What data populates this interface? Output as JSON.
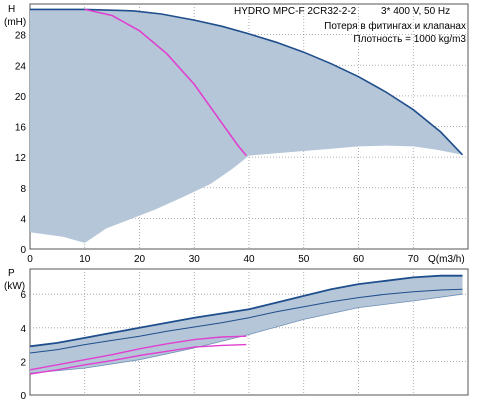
{
  "chart_data": [
    {
      "type": "area",
      "title": "HYDRO MPC-F 2CR32-2-2",
      "subtitle": "3* 400 V, 50 Hz",
      "annotations": [
        "Потеря в фитингах и клапанах",
        "Плотность = 1000 kg/m3"
      ],
      "ylabel": "H",
      "yunit": "(mH)",
      "xlabel": "Q(m3/h)",
      "xlim": [
        0,
        80
      ],
      "ylim": [
        0,
        32
      ],
      "xticks": [
        0,
        10,
        20,
        30,
        40,
        50,
        60,
        70
      ],
      "yticks": [
        0,
        4,
        8,
        12,
        16,
        20,
        24,
        28
      ],
      "grid": true,
      "colors": {
        "envelope_fill": "#b4c6d8",
        "envelope_line": "#1f4e8c",
        "pump_curve": "#e040d0"
      },
      "series": [
        {
          "role": "operating-range-envelope",
          "x": [
            0,
            10,
            19,
            24,
            30,
            35,
            40,
            45,
            50,
            55,
            60,
            65,
            70,
            75,
            79,
            74,
            70,
            65,
            60,
            55,
            50,
            45,
            40,
            37,
            33,
            28,
            23,
            18,
            14,
            10,
            6,
            0
          ],
          "y": [
            31.3,
            31.3,
            31.1,
            30.7,
            29.9,
            29.1,
            28.1,
            27.0,
            25.7,
            24.2,
            22.5,
            20.5,
            18.2,
            15.3,
            12.3,
            13.0,
            13.4,
            13.5,
            13.4,
            13.1,
            12.8,
            12.5,
            12.2,
            10.5,
            8.5,
            6.8,
            5.2,
            3.8,
            2.7,
            0.8,
            1.6,
            2.2
          ]
        },
        {
          "role": "pump-curve",
          "x": [
            10,
            15,
            20,
            25,
            30,
            35,
            38,
            39.5
          ],
          "y": [
            31.3,
            30.5,
            28.5,
            25.5,
            21.5,
            16.5,
            13.5,
            12.2
          ]
        }
      ]
    },
    {
      "type": "line",
      "ylabel": "P",
      "yunit": "(kW)",
      "xlim": [
        0,
        80
      ],
      "ylim": [
        0,
        7.5
      ],
      "yticks": [
        0,
        2,
        4,
        6
      ],
      "grid": true,
      "series": [
        {
          "role": "upper-envelope",
          "x": [
            0,
            5,
            10,
            15,
            20,
            25,
            30,
            35,
            40,
            45,
            50,
            55,
            60,
            65,
            70,
            75,
            79
          ],
          "y": [
            2.9,
            3.1,
            3.4,
            3.7,
            4.0,
            4.3,
            4.6,
            4.85,
            5.1,
            5.5,
            5.9,
            6.3,
            6.6,
            6.8,
            7.0,
            7.1,
            7.1
          ]
        },
        {
          "role": "mid-envelope",
          "x": [
            0,
            5,
            10,
            15,
            20,
            25,
            30,
            35,
            40,
            45,
            50,
            55,
            60,
            65,
            70,
            75,
            79
          ],
          "y": [
            2.5,
            2.7,
            3.0,
            3.25,
            3.5,
            3.8,
            4.05,
            4.3,
            4.6,
            4.95,
            5.25,
            5.55,
            5.8,
            6.0,
            6.15,
            6.25,
            6.3
          ]
        },
        {
          "role": "lower-envelope",
          "x": [
            0,
            10,
            20,
            30,
            40,
            50,
            60,
            70,
            79
          ],
          "y": [
            1.3,
            1.6,
            2.1,
            2.8,
            3.6,
            4.5,
            5.2,
            5.6,
            6.0
          ]
        },
        {
          "role": "pump-curve-upper",
          "x": [
            0,
            5,
            10,
            15,
            20,
            25,
            30,
            35,
            39.5
          ],
          "y": [
            1.5,
            1.8,
            2.1,
            2.4,
            2.75,
            3.05,
            3.3,
            3.45,
            3.5
          ]
        },
        {
          "role": "pump-curve-lower",
          "x": [
            0,
            5,
            10,
            15,
            20,
            25,
            30,
            35,
            39.5
          ],
          "y": [
            1.25,
            1.5,
            1.8,
            2.05,
            2.35,
            2.6,
            2.85,
            2.95,
            3.0
          ]
        }
      ]
    }
  ]
}
